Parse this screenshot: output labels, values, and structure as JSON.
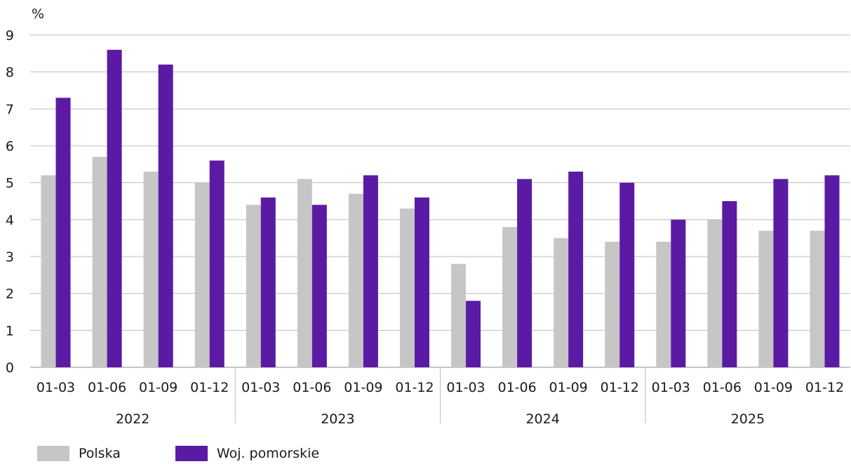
{
  "chart_data": {
    "type": "bar",
    "ylabel": "%",
    "ylim": [
      0,
      9
    ],
    "yticks": [
      "0",
      "1",
      "2",
      "3",
      "4",
      "5",
      "6",
      "7",
      "8",
      "9"
    ],
    "grid": true,
    "legend_position": "bottom-left",
    "groups": [
      {
        "label": "2022",
        "categories": [
          "01-03",
          "01-06",
          "01-09",
          "01-12"
        ]
      },
      {
        "label": "2023",
        "categories": [
          "01-03",
          "01-06",
          "01-09",
          "01-12"
        ]
      },
      {
        "label": "2024",
        "categories": [
          "01-03",
          "01-06",
          "01-09",
          "01-12"
        ]
      },
      {
        "label": "2025",
        "categories": [
          "01-03",
          "01-06",
          "01-09",
          "01-12"
        ]
      }
    ],
    "series": [
      {
        "name": "Polska",
        "color": "#c6c6c6",
        "values": [
          5.2,
          5.7,
          5.3,
          5.0,
          4.4,
          5.1,
          4.7,
          4.3,
          2.8,
          3.8,
          3.5,
          3.4,
          3.4,
          4.0,
          3.7,
          3.7
        ]
      },
      {
        "name": "Woj. pomorskie",
        "color": "#5b1aa3",
        "values": [
          7.3,
          8.6,
          8.2,
          5.6,
          4.6,
          4.4,
          5.2,
          4.6,
          1.8,
          5.1,
          5.3,
          5.0,
          4.0,
          4.5,
          5.1,
          5.2
        ]
      }
    ]
  }
}
